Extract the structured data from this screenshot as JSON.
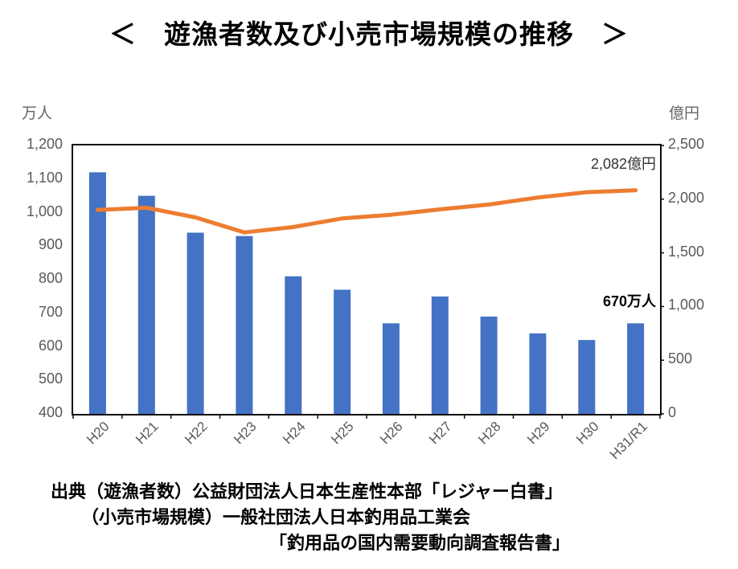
{
  "title": "＜　遊漁者数及び小売市場規模の推移　＞",
  "left_axis": {
    "unit": "万人",
    "ticks": [
      "1,200",
      "1,100",
      "1,000",
      "900",
      "800",
      "700",
      "600",
      "500",
      "400"
    ]
  },
  "right_axis": {
    "unit": "億円",
    "ticks": [
      "2,500",
      "2,000",
      "1,500",
      "1,000",
      "500",
      "0"
    ]
  },
  "annotations": {
    "line_end_label": "2,082億円",
    "bar_end_label": "670万人"
  },
  "source_lines": [
    "出典（遊漁者数）公益財団法人日本生産性本部「レジャー白書」",
    "（小売市場規模）一般社団法人日本釣用品工業会",
    "「釣用品の国内需要動向調査報告書」"
  ],
  "colors": {
    "bar": "#4472C4",
    "line": "#ED7D31",
    "axis_text": "#595959",
    "border": "#0d0d0d"
  },
  "chart_data": {
    "type": "bar+line combo, dual axis",
    "categories": [
      "H20",
      "H21",
      "H22",
      "H23",
      "H24",
      "H25",
      "H26",
      "H27",
      "H28",
      "H29",
      "H30",
      "H31/R1"
    ],
    "series": [
      {
        "name": "遊漁者数",
        "type": "bar",
        "axis": "left",
        "unit": "万人",
        "values": [
          1120,
          1050,
          940,
          930,
          810,
          770,
          670,
          750,
          690,
          640,
          620,
          670
        ]
      },
      {
        "name": "小売市場規模",
        "type": "line",
        "axis": "right",
        "unit": "億円",
        "values": [
          1900,
          1920,
          1830,
          1690,
          1740,
          1820,
          1855,
          1905,
          1950,
          2015,
          2065,
          2082
        ]
      }
    ],
    "title": "遊漁者数及び小売市場規模の推移",
    "xlabel": "",
    "ylabel_left": "万人",
    "ylabel_right": "億円",
    "left_ylim": [
      400,
      1200
    ],
    "right_ylim": [
      0,
      2500
    ],
    "grid": false,
    "legend": "none"
  }
}
